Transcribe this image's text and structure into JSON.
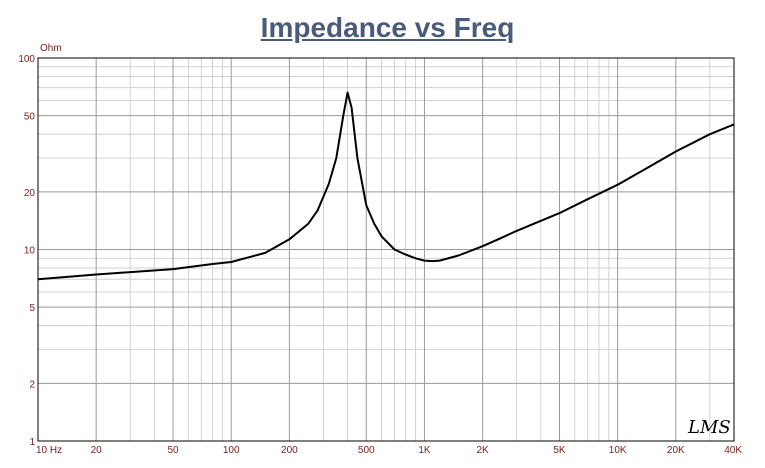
{
  "chart_data": {
    "type": "line",
    "title": "Impedance vs Freq",
    "ylabel": "Ohm",
    "xscale": "log",
    "yscale": "log",
    "xlim": [
      10,
      40000
    ],
    "ylim": [
      1,
      100
    ],
    "grid": true,
    "x_ticks": [
      {
        "value": 10,
        "label": "10 Hz"
      },
      {
        "value": 20,
        "label": "20"
      },
      {
        "value": 50,
        "label": "50"
      },
      {
        "value": 100,
        "label": "100"
      },
      {
        "value": 200,
        "label": "200"
      },
      {
        "value": 500,
        "label": "500"
      },
      {
        "value": 1000,
        "label": "1K"
      },
      {
        "value": 2000,
        "label": "2K"
      },
      {
        "value": 5000,
        "label": "5K"
      },
      {
        "value": 10000,
        "label": "10K"
      },
      {
        "value": 20000,
        "label": "20K"
      },
      {
        "value": 40000,
        "label": "40K"
      }
    ],
    "y_ticks": [
      {
        "value": 1,
        "label": "1"
      },
      {
        "value": 2,
        "label": "2"
      },
      {
        "value": 5,
        "label": "5"
      },
      {
        "value": 10,
        "label": "10"
      },
      {
        "value": 20,
        "label": "20"
      },
      {
        "value": 50,
        "label": "50"
      },
      {
        "value": 100,
        "label": "100"
      }
    ],
    "series": [
      {
        "color": "#000000",
        "x": [
          10,
          20,
          50,
          80,
          100,
          150,
          200,
          250,
          280,
          320,
          350,
          380,
          400,
          420,
          450,
          500,
          550,
          600,
          700,
          800,
          900,
          1000,
          1100,
          1200,
          1500,
          2000,
          2500,
          3000,
          5000,
          7000,
          10000,
          15000,
          20000,
          30000,
          40000
        ],
        "y": [
          7.0,
          7.4,
          7.9,
          8.4,
          8.6,
          9.6,
          11.3,
          13.6,
          16.0,
          22.0,
          30.0,
          50.0,
          66.0,
          55.0,
          30.0,
          17.0,
          13.6,
          11.7,
          10.0,
          9.4,
          9.0,
          8.75,
          8.7,
          8.75,
          9.3,
          10.4,
          11.5,
          12.5,
          15.5,
          18.3,
          21.8,
          27.5,
          32.5,
          40.0,
          45.0
        ]
      }
    ]
  },
  "ui": {
    "logo_text": "LMS"
  }
}
